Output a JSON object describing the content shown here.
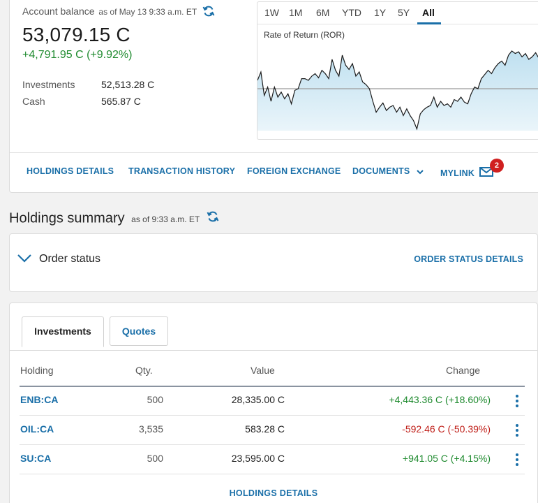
{
  "account": {
    "balance_label": "Account balance",
    "as_of": "as of May 13 9:33 a.m. ET",
    "balance": "53,079.15 C",
    "change": "+4,791.95 C (+9.92%)",
    "investments_label": "Investments",
    "investments_value": "52,513.28 C",
    "cash_label": "Cash",
    "cash_value": "565.87 C"
  },
  "chart": {
    "ranges": [
      "1W",
      "1M",
      "6M",
      "YTD",
      "1Y",
      "5Y",
      "All"
    ],
    "active_range": "All",
    "series_label": "Rate of Return (ROR)",
    "colors": {
      "line": "#1a1a1a",
      "fill_top": "#bfe0f0",
      "fill_bottom": "#eaf5fa",
      "baseline": "#9a9a9a"
    }
  },
  "chart_data": {
    "type": "area",
    "title": "Rate of Return (ROR)",
    "xlabel": "",
    "ylabel": "",
    "ylim": [
      0,
      100
    ],
    "baseline": 50,
    "values": [
      60,
      70,
      42,
      52,
      35,
      52,
      40,
      46,
      38,
      44,
      32,
      48,
      50,
      62,
      62,
      60,
      65,
      68,
      63,
      72,
      68,
      62,
      85,
      72,
      65,
      90,
      78,
      73,
      80,
      65,
      70,
      58,
      55,
      50,
      35,
      22,
      28,
      33,
      24,
      28,
      30,
      22,
      28,
      18,
      26,
      18,
      12,
      2,
      20,
      25,
      28,
      30,
      40,
      28,
      35,
      30,
      32,
      28,
      37,
      35,
      40,
      34,
      32,
      44,
      52,
      50,
      62,
      67,
      72,
      68,
      75,
      80,
      83,
      78,
      90,
      95,
      92,
      94,
      88,
      92,
      85,
      88,
      93,
      86,
      83,
      88,
      90
    ]
  },
  "nav": {
    "holdings_details": "HOLDINGS DETAILS",
    "transaction_history": "TRANSACTION HISTORY",
    "foreign_exchange": "FOREIGN EXCHANGE",
    "documents": "DOCUMENTS",
    "mylink": "MYLINK",
    "mylink_badge": "2"
  },
  "summary": {
    "title": "Holdings summary",
    "as_of": "as of 9:33 a.m. ET"
  },
  "order_status": {
    "title": "Order status",
    "details_link": "ORDER STATUS DETAILS"
  },
  "holdings": {
    "tabs": [
      "Investments",
      "Quotes"
    ],
    "columns": {
      "holding": "Holding",
      "qty": "Qty.",
      "value": "Value",
      "change": "Change"
    },
    "rows": [
      {
        "symbol": "ENB:CA",
        "qty": "500",
        "value": "28,335.00 C",
        "change": "+4,443.36 C (+18.60%)",
        "direction": "pos"
      },
      {
        "symbol": "OIL:CA",
        "qty": "3,535",
        "value": "583.28 C",
        "change": "-592.46 C (-50.39%)",
        "direction": "neg"
      },
      {
        "symbol": "SU:CA",
        "qty": "500",
        "value": "23,595.00 C",
        "change": "+941.05 C (+4.15%)",
        "direction": "pos"
      }
    ],
    "footer_link": "HOLDINGS DETAILS"
  }
}
